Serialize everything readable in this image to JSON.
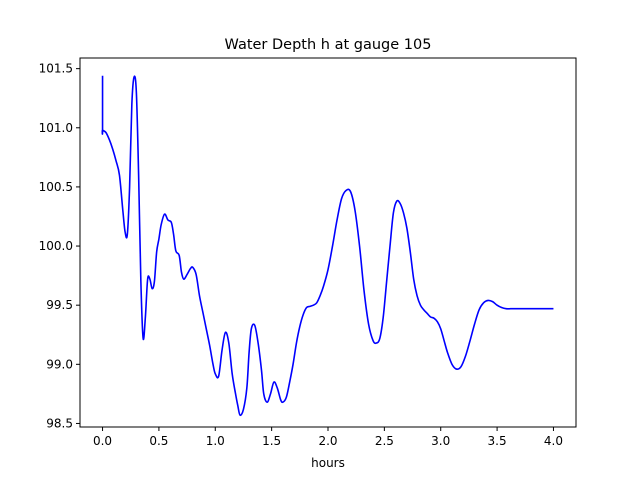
{
  "chart_data": {
    "type": "line",
    "title": "Water Depth h at gauge 105",
    "xlabel": "hours",
    "ylabel": "",
    "xlim": [
      -0.2,
      4.2
    ],
    "ylim": [
      98.47,
      101.59
    ],
    "xticks": [
      0.0,
      0.5,
      1.0,
      1.5,
      2.0,
      2.5,
      3.0,
      3.5,
      4.0
    ],
    "xtick_labels": [
      "0.0",
      "0.5",
      "1.0",
      "1.5",
      "2.0",
      "2.5",
      "3.0",
      "3.5",
      "4.0"
    ],
    "yticks": [
      98.5,
      99.0,
      99.5,
      100.0,
      100.5,
      101.0,
      101.5
    ],
    "ytick_labels": [
      "98.5",
      "99.0",
      "99.5",
      "100.0",
      "100.5",
      "101.0",
      "101.5"
    ],
    "grid": false,
    "series": [
      {
        "color": "#0000ff",
        "x": [
          0.0,
          0.0,
          0.0,
          0.03,
          0.06,
          0.09,
          0.12,
          0.15,
          0.18,
          0.2,
          0.22,
          0.24,
          0.26,
          0.28,
          0.3,
          0.32,
          0.34,
          0.36,
          0.38,
          0.4,
          0.42,
          0.44,
          0.46,
          0.48,
          0.5,
          0.52,
          0.55,
          0.58,
          0.61,
          0.63,
          0.65,
          0.68,
          0.7,
          0.72,
          0.75,
          0.78,
          0.8,
          0.83,
          0.86,
          0.89,
          0.92,
          0.95,
          0.98,
          1.0,
          1.03,
          1.06,
          1.09,
          1.12,
          1.15,
          1.18,
          1.2,
          1.22,
          1.25,
          1.28,
          1.3,
          1.32,
          1.35,
          1.38,
          1.41,
          1.43,
          1.46,
          1.49,
          1.52,
          1.55,
          1.58,
          1.6,
          1.63,
          1.66,
          1.69,
          1.72,
          1.75,
          1.78,
          1.81,
          1.84,
          1.87,
          1.9,
          1.93,
          1.96,
          2.0,
          2.04,
          2.08,
          2.12,
          2.16,
          2.2,
          2.24,
          2.28,
          2.32,
          2.36,
          2.4,
          2.43,
          2.46,
          2.49,
          2.52,
          2.55,
          2.58,
          2.61,
          2.64,
          2.67,
          2.7,
          2.73,
          2.76,
          2.79,
          2.82,
          2.85,
          2.88,
          2.91,
          2.94,
          2.97,
          3.0,
          3.03,
          3.06,
          3.1,
          3.14,
          3.18,
          3.22,
          3.26,
          3.3,
          3.34,
          3.38,
          3.42,
          3.46,
          3.5,
          3.54,
          3.58,
          3.62,
          3.66,
          3.7,
          3.74,
          3.78,
          3.82,
          3.86,
          3.9,
          3.94,
          3.97,
          4.0
        ],
        "y": [
          101.44,
          100.98,
          100.98,
          100.96,
          100.9,
          100.82,
          100.72,
          100.6,
          100.3,
          100.12,
          100.1,
          100.5,
          101.2,
          101.43,
          101.3,
          100.6,
          99.7,
          99.22,
          99.4,
          99.72,
          99.72,
          99.64,
          99.7,
          99.95,
          100.06,
          100.18,
          100.27,
          100.22,
          100.2,
          100.1,
          99.96,
          99.92,
          99.78,
          99.72,
          99.76,
          99.81,
          99.82,
          99.76,
          99.58,
          99.44,
          99.3,
          99.16,
          99.0,
          98.92,
          98.9,
          99.12,
          99.27,
          99.18,
          98.92,
          98.75,
          98.65,
          98.57,
          98.62,
          98.8,
          99.1,
          99.3,
          99.33,
          99.18,
          98.95,
          98.75,
          98.68,
          98.75,
          98.85,
          98.8,
          98.7,
          98.68,
          98.72,
          98.85,
          99.0,
          99.18,
          99.32,
          99.42,
          99.48,
          99.49,
          99.5,
          99.52,
          99.58,
          99.66,
          99.8,
          100.0,
          100.22,
          100.4,
          100.47,
          100.46,
          100.3,
          100.0,
          99.62,
          99.34,
          99.2,
          99.18,
          99.22,
          99.4,
          99.7,
          100.0,
          100.28,
          100.38,
          100.36,
          100.28,
          100.15,
          99.95,
          99.72,
          99.58,
          99.5,
          99.46,
          99.43,
          99.4,
          99.39,
          99.36,
          99.3,
          99.2,
          99.1,
          99.0,
          98.96,
          98.98,
          99.07,
          99.2,
          99.34,
          99.46,
          99.52,
          99.54,
          99.53,
          99.5,
          99.48,
          99.47,
          99.47,
          99.47,
          99.47,
          99.47,
          99.47,
          99.47,
          99.47,
          99.47,
          99.47,
          99.47,
          99.47
        ]
      }
    ]
  }
}
